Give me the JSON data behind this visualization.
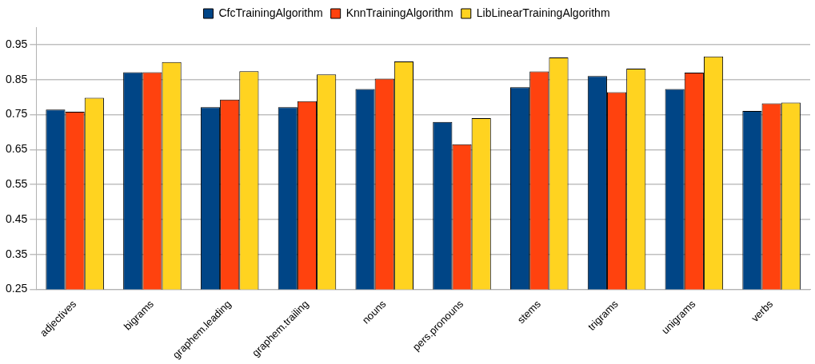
{
  "chart_data": {
    "type": "bar",
    "categories": [
      "adjectives",
      "bigrams",
      "graphem.leading",
      "graphem.trailing",
      "nouns",
      "pers.pronouns",
      "stems",
      "trigrams",
      "unigrams",
      "verbs"
    ],
    "series": [
      {
        "name": "CfcTrainingAlgorithm",
        "color": "#004586",
        "values": [
          0.764,
          0.871,
          0.771,
          0.771,
          0.823,
          0.729,
          0.828,
          0.86,
          0.823,
          0.76
        ]
      },
      {
        "name": "KnnTrainingAlgorithm",
        "color": "#ff420e",
        "values": [
          0.758,
          0.871,
          0.793,
          0.788,
          0.853,
          0.665,
          0.873,
          0.814,
          0.87,
          0.782
        ]
      },
      {
        "name": "LibLinearTrainingAlgorithm",
        "color": "#ffd320",
        "values": [
          0.798,
          0.9,
          0.874,
          0.865,
          0.902,
          0.74,
          0.913,
          0.881,
          0.916,
          0.784
        ]
      }
    ],
    "ylim": [
      0.25,
      1.0
    ],
    "yticks": [
      0.25,
      0.35,
      0.45,
      0.55,
      0.65,
      0.75,
      0.85,
      0.95
    ],
    "grid": "y",
    "legend": "top"
  }
}
